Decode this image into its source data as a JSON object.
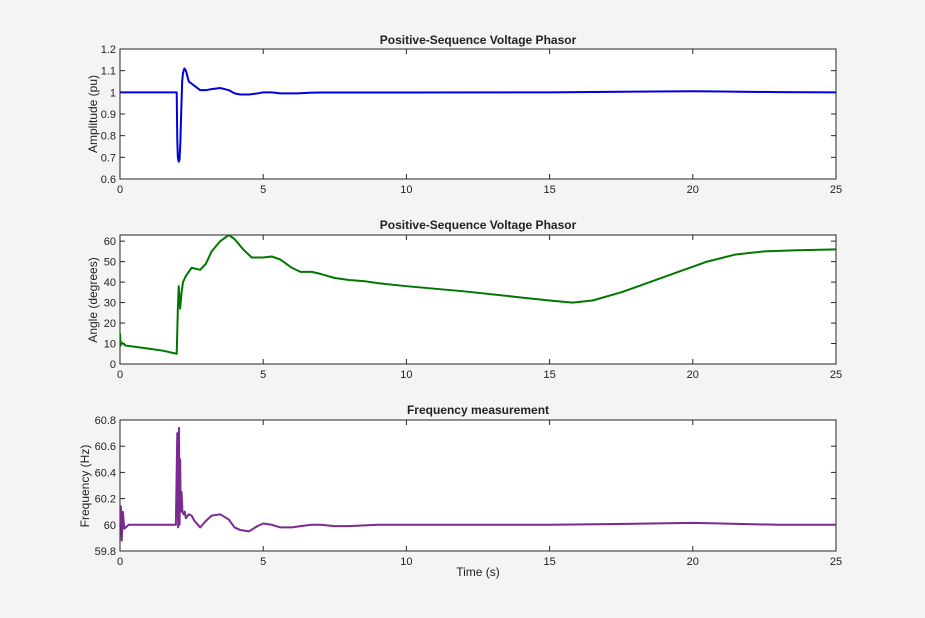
{
  "chart_data": [
    {
      "type": "line",
      "title": "Positive-Sequence Voltage Phasor",
      "xlabel": "",
      "ylabel": "Amplitude (pu)",
      "xlim": [
        0,
        25
      ],
      "ylim": [
        0.6,
        1.2
      ],
      "xticks": [
        0,
        5,
        10,
        15,
        20,
        25
      ],
      "yticks": [
        0.6,
        0.7,
        0.8,
        0.9,
        1,
        1.1,
        1.2
      ],
      "grid": false,
      "color": "#0000dd",
      "series": [
        {
          "x": [
            0,
            1.98,
            2.0,
            2.02,
            2.05,
            2.08,
            2.11,
            2.14,
            2.17,
            2.2,
            2.25,
            2.3,
            2.4,
            2.6,
            2.8,
            3.0,
            3.2,
            3.5,
            3.8,
            4.0,
            4.2,
            4.5,
            4.8,
            5.0,
            5.3,
            5.6,
            5.9,
            6.2,
            6.6,
            7.0,
            8.0,
            10.0,
            15.0,
            18.0,
            20.0,
            21.0,
            23.0,
            25.0
          ],
          "y": [
            1.0,
            1.0,
            0.78,
            0.7,
            0.68,
            0.69,
            0.78,
            0.92,
            1.05,
            1.09,
            1.11,
            1.1,
            1.05,
            1.03,
            1.01,
            1.01,
            1.015,
            1.02,
            1.01,
            0.995,
            0.99,
            0.99,
            0.995,
            1.0,
            1.0,
            0.995,
            0.995,
            0.995,
            0.998,
            0.999,
            0.999,
            0.999,
            1.0,
            1.003,
            1.005,
            1.004,
            1.001,
            1.0
          ]
        }
      ]
    },
    {
      "type": "line",
      "title": "Positive-Sequence Voltage Phasor",
      "xlabel": "",
      "ylabel": "Angle (degrees)",
      "xlim": [
        0,
        25
      ],
      "ylim": [
        0,
        63
      ],
      "xticks": [
        0,
        5,
        10,
        15,
        20,
        25
      ],
      "yticks": [
        0,
        10,
        20,
        30,
        40,
        50,
        60
      ],
      "grid": false,
      "color": "#007700",
      "series": [
        {
          "x": [
            0,
            0.02,
            0.05,
            0.2,
            1.0,
            1.5,
            1.98,
            2.02,
            2.05,
            2.1,
            2.15,
            2.2,
            2.3,
            2.5,
            2.8,
            3.0,
            3.2,
            3.5,
            3.8,
            4.0,
            4.3,
            4.6,
            5.0,
            5.3,
            5.6,
            6.0,
            6.3,
            6.7,
            7.0,
            7.5,
            8.0,
            8.5,
            9.0,
            10.0,
            12.0,
            14.0,
            15.0,
            15.8,
            16.5,
            17.5,
            18.5,
            19.5,
            20.5,
            21.5,
            22.5,
            23.5,
            25.0
          ],
          "y": [
            15.0,
            9.0,
            10.5,
            9.0,
            7.5,
            6.5,
            5.0,
            27.0,
            38.0,
            27.0,
            35.0,
            40.0,
            43.0,
            47.0,
            46.0,
            49.0,
            55.0,
            60.0,
            63.0,
            61.0,
            56.0,
            52.0,
            52.0,
            52.5,
            51.0,
            47.0,
            45.0,
            45.0,
            44.0,
            42.0,
            41.0,
            40.5,
            39.5,
            38.0,
            35.5,
            32.5,
            31.0,
            30.0,
            31.0,
            35.0,
            40.0,
            45.0,
            50.0,
            53.5,
            55.0,
            55.5,
            56.0
          ]
        }
      ]
    },
    {
      "type": "line",
      "title": "Frequency measurement",
      "xlabel": "Time (s)",
      "ylabel": "Frequency (Hz)",
      "xlim": [
        0,
        25
      ],
      "ylim": [
        59.8,
        60.8
      ],
      "xticks": [
        0,
        5,
        10,
        15,
        20,
        25
      ],
      "yticks": [
        59.8,
        60,
        60.2,
        60.4,
        60.6,
        60.8
      ],
      "grid": false,
      "color": "#7a2a90",
      "series": [
        {
          "x": [
            0,
            0.03,
            0.06,
            0.1,
            0.15,
            0.3,
            1.95,
            2.0,
            2.03,
            2.06,
            2.08,
            2.1,
            2.12,
            2.15,
            2.18,
            2.22,
            2.26,
            2.3,
            2.4,
            2.5,
            2.6,
            2.8,
            3.0,
            3.2,
            3.5,
            3.8,
            4.0,
            4.2,
            4.5,
            4.8,
            5.0,
            5.3,
            5.6,
            6.0,
            6.3,
            6.7,
            7.0,
            7.5,
            8.0,
            9.0,
            10.0,
            15.0,
            17.0,
            20.0,
            21.0,
            23.0,
            25.0
          ],
          "y": [
            60.0,
            60.14,
            59.88,
            60.1,
            59.97,
            60.0,
            60.0,
            60.7,
            59.98,
            60.74,
            60.0,
            60.5,
            60.1,
            60.25,
            60.1,
            60.08,
            60.1,
            60.05,
            60.08,
            60.07,
            60.03,
            59.98,
            60.03,
            60.07,
            60.08,
            60.04,
            59.98,
            59.96,
            59.95,
            59.99,
            60.01,
            60.0,
            59.98,
            59.98,
            59.99,
            60.0,
            60.0,
            59.99,
            59.99,
            60.0,
            60.0,
            60.0,
            60.005,
            60.015,
            60.01,
            60.0,
            60.0
          ]
        }
      ]
    }
  ]
}
